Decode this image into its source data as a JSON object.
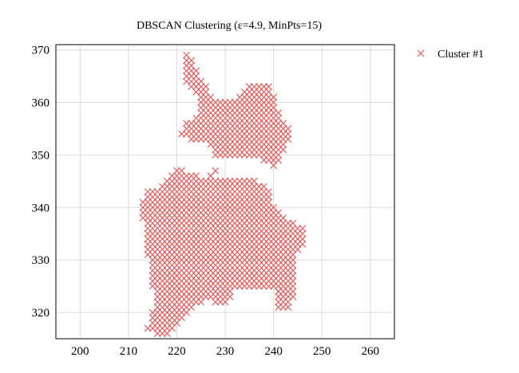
{
  "chart_data": {
    "type": "scatter",
    "title": "DBSCAN Clustering (ε=4.9, MinPts=15)",
    "xlabel": "",
    "ylabel": "",
    "xlim": [
      195,
      265
    ],
    "ylim": [
      315,
      371
    ],
    "xticks": [
      200,
      210,
      220,
      230,
      240,
      250,
      260
    ],
    "yticks": [
      320,
      330,
      340,
      350,
      360,
      370
    ],
    "grid": true,
    "legend_position": "top-right (outside plot)",
    "marker": "x",
    "series": [
      {
        "name": "Cluster #1",
        "color": "#e06060",
        "region_description": "dense grid of points filling the outlined shape",
        "outline": [
          [
            217.5,
            315.5
          ],
          [
            213.5,
            316.5
          ],
          [
            215.5,
            321.5
          ],
          [
            214.5,
            327.5
          ],
          [
            213.5,
            334.5
          ],
          [
            212.5,
            340.5
          ],
          [
            213.5,
            343.0
          ],
          [
            216.5,
            344.0
          ],
          [
            220.5,
            347.5
          ],
          [
            224.5,
            346.0
          ],
          [
            231.5,
            345.5
          ],
          [
            236.5,
            345.0
          ],
          [
            240.0,
            343.5
          ],
          [
            239.5,
            340.5
          ],
          [
            243.5,
            337.5
          ],
          [
            246.5,
            336.5
          ],
          [
            246.5,
            333.5
          ],
          [
            244.0,
            330.5
          ],
          [
            244.5,
            325.0
          ],
          [
            243.5,
            320.5
          ],
          [
            240.5,
            320.5
          ],
          [
            240.0,
            324.5
          ],
          [
            232.0,
            324.5
          ],
          [
            230.0,
            321.0
          ],
          [
            226.0,
            322.5
          ],
          [
            222.5,
            320.5
          ],
          [
            220.5,
            317.5
          ]
        ],
        "outline_upper": [
          [
            227.5,
            343.5
          ],
          [
            228.5,
            349.0
          ],
          [
            236.0,
            350.0
          ],
          [
            240.5,
            347.5
          ],
          [
            242.0,
            350.0
          ],
          [
            244.0,
            355.0
          ],
          [
            242.0,
            356.5
          ],
          [
            240.5,
            359.5
          ],
          [
            239.5,
            363.5
          ],
          [
            234.5,
            363.5
          ],
          [
            232.5,
            361.0
          ],
          [
            228.0,
            360.0
          ],
          [
            226.5,
            362.5
          ],
          [
            225.0,
            365.0
          ],
          [
            222.0,
            370.0
          ],
          [
            221.0,
            368.5
          ],
          [
            222.0,
            363.5
          ],
          [
            224.0,
            361.5
          ],
          [
            224.5,
            357.5
          ],
          [
            222.0,
            356.0
          ],
          [
            220.0,
            353.5
          ],
          [
            225.0,
            352.5
          ],
          [
            227.5,
            351.5
          ],
          [
            228.5,
            347.5
          ],
          [
            226.5,
            346.0
          ]
        ]
      }
    ]
  }
}
